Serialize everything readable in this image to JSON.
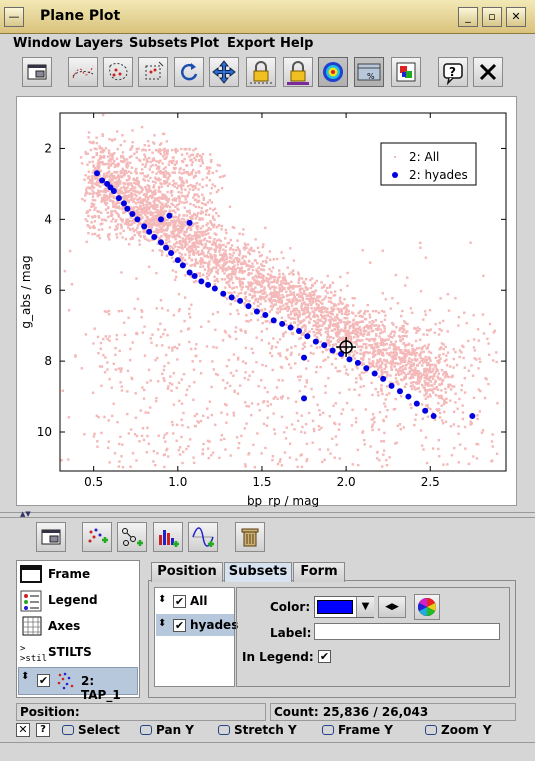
{
  "window": {
    "title": "Plane Plot"
  },
  "menu": [
    "Window",
    "Layers",
    "Subsets",
    "Plot",
    "Export",
    "Help"
  ],
  "toolbar": {
    "icons": [
      "window-icon",
      "lines-icon",
      "points-icon",
      "region-icon",
      "reload-icon",
      "pan-icon",
      "lock-icon",
      "lock-all-icon",
      "density-icon",
      "grid-icon",
      "export-icon",
      "help-icon",
      "close-icon"
    ]
  },
  "chart_data": {
    "type": "scatter",
    "xlabel": "bp_rp / mag",
    "ylabel": "g_abs / mag",
    "xlim": [
      0.3,
      2.95
    ],
    "ylim": [
      11.1,
      1.0
    ],
    "xticks": [
      "0.5",
      "1.0",
      "1.5",
      "2.0",
      "2.5"
    ],
    "yticks": [
      "2",
      "4",
      "6",
      "8",
      "10"
    ],
    "legend_position": "top-right",
    "series": [
      {
        "name": "2: All",
        "color": "#f4b8b8",
        "style": "small-dots"
      },
      {
        "name": "2: hyades",
        "color": "#0000e0",
        "style": "filled-circles",
        "points": [
          [
            0.52,
            2.7
          ],
          [
            0.55,
            2.9
          ],
          [
            0.58,
            3.0
          ],
          [
            0.6,
            3.1
          ],
          [
            0.62,
            3.2
          ],
          [
            0.65,
            3.4
          ],
          [
            0.68,
            3.55
          ],
          [
            0.7,
            3.7
          ],
          [
            0.73,
            3.85
          ],
          [
            0.76,
            4.0
          ],
          [
            0.8,
            4.2
          ],
          [
            0.83,
            4.35
          ],
          [
            0.86,
            4.5
          ],
          [
            0.9,
            4.65
          ],
          [
            0.93,
            4.8
          ],
          [
            0.96,
            4.95
          ],
          [
            1.0,
            5.15
          ],
          [
            1.03,
            5.3
          ],
          [
            1.07,
            5.5
          ],
          [
            1.1,
            5.6
          ],
          [
            1.14,
            5.75
          ],
          [
            1.18,
            5.85
          ],
          [
            1.22,
            5.95
          ],
          [
            1.27,
            6.1
          ],
          [
            1.32,
            6.2
          ],
          [
            1.37,
            6.3
          ],
          [
            1.42,
            6.45
          ],
          [
            1.47,
            6.6
          ],
          [
            1.52,
            6.7
          ],
          [
            1.57,
            6.85
          ],
          [
            1.62,
            6.95
          ],
          [
            1.67,
            7.05
          ],
          [
            1.72,
            7.15
          ],
          [
            1.77,
            7.3
          ],
          [
            1.82,
            7.45
          ],
          [
            1.87,
            7.55
          ],
          [
            1.92,
            7.7
          ],
          [
            1.97,
            7.8
          ],
          [
            2.02,
            7.95
          ],
          [
            2.07,
            8.05
          ],
          [
            2.12,
            8.2
          ],
          [
            2.17,
            8.35
          ],
          [
            2.22,
            8.5
          ],
          [
            2.27,
            8.7
          ],
          [
            2.32,
            8.85
          ],
          [
            2.37,
            9.0
          ],
          [
            2.42,
            9.2
          ],
          [
            2.47,
            9.4
          ],
          [
            2.52,
            9.55
          ],
          [
            0.9,
            4.0
          ],
          [
            0.95,
            3.9
          ],
          [
            1.07,
            4.1
          ],
          [
            1.75,
            7.9
          ],
          [
            1.75,
            9.05
          ],
          [
            2.75,
            9.55
          ]
        ]
      }
    ],
    "marker": {
      "x": 2.0,
      "y": 7.6
    }
  },
  "layer_toolbar": {
    "icons": [
      "window-icon",
      "add-points-icon",
      "add-pairs-icon",
      "add-histogram-icon",
      "add-function-icon",
      "delete-icon"
    ]
  },
  "layers": [
    {
      "label": "Frame",
      "icon": "frame-icon"
    },
    {
      "label": "Legend",
      "icon": "legend-icon"
    },
    {
      "label": "Axes",
      "icon": "axes-icon"
    },
    {
      "label": "STILTS",
      "icon": "stilts-icon"
    },
    {
      "label": "2: TAP_1",
      "icon": "scatter-layer-icon",
      "checked": true
    }
  ],
  "tabs": [
    "Position",
    "Subsets",
    "Form"
  ],
  "active_tab": "Subsets",
  "subsets": [
    {
      "label": "All",
      "checked": true
    },
    {
      "label": "hyades",
      "checked": true
    }
  ],
  "form": {
    "color_label": "Color:",
    "color_value": "#0000ff",
    "label_label": "Label:",
    "label_value": "",
    "in_legend_label": "In Legend:",
    "in_legend_checked": true
  },
  "status": {
    "position_label": "Position:",
    "count": "Count: 25,836 / 26,043"
  },
  "mouse_hints": [
    {
      "label": "Select",
      "x": 62
    },
    {
      "label": "Pan Y",
      "x": 140
    },
    {
      "label": "Stretch Y",
      "x": 218
    },
    {
      "label": "Frame Y",
      "x": 322
    },
    {
      "label": "Zoom Y",
      "x": 425
    }
  ]
}
